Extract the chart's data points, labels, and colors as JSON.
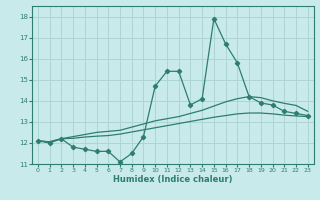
{
  "xlabel": "Humidex (Indice chaleur)",
  "ylabel": "",
  "xlim": [
    -0.5,
    23.5
  ],
  "ylim": [
    11,
    18.5
  ],
  "yticks": [
    11,
    12,
    13,
    14,
    15,
    16,
    17,
    18
  ],
  "xticks": [
    0,
    1,
    2,
    3,
    4,
    5,
    6,
    7,
    8,
    9,
    10,
    11,
    12,
    13,
    14,
    15,
    16,
    17,
    18,
    19,
    20,
    21,
    22,
    23
  ],
  "bg_color": "#c8eaea",
  "grid_color": "#afd4d4",
  "line_color": "#2e7d70",
  "line1_y": [
    12.1,
    12.0,
    12.2,
    11.8,
    11.7,
    11.6,
    11.6,
    11.1,
    11.5,
    12.3,
    14.7,
    15.4,
    15.4,
    13.8,
    14.1,
    17.9,
    16.7,
    15.8,
    14.2,
    13.9,
    13.8,
    13.5,
    13.4,
    13.3
  ],
  "line2_y": [
    12.1,
    12.05,
    12.2,
    12.3,
    12.4,
    12.5,
    12.55,
    12.6,
    12.75,
    12.9,
    13.05,
    13.15,
    13.25,
    13.4,
    13.55,
    13.75,
    13.95,
    14.1,
    14.2,
    14.15,
    14.0,
    13.88,
    13.78,
    13.5
  ],
  "line3_y": [
    12.1,
    12.05,
    12.2,
    12.22,
    12.28,
    12.32,
    12.35,
    12.42,
    12.52,
    12.62,
    12.72,
    12.82,
    12.92,
    13.02,
    13.12,
    13.22,
    13.3,
    13.38,
    13.42,
    13.42,
    13.38,
    13.32,
    13.28,
    13.25
  ]
}
